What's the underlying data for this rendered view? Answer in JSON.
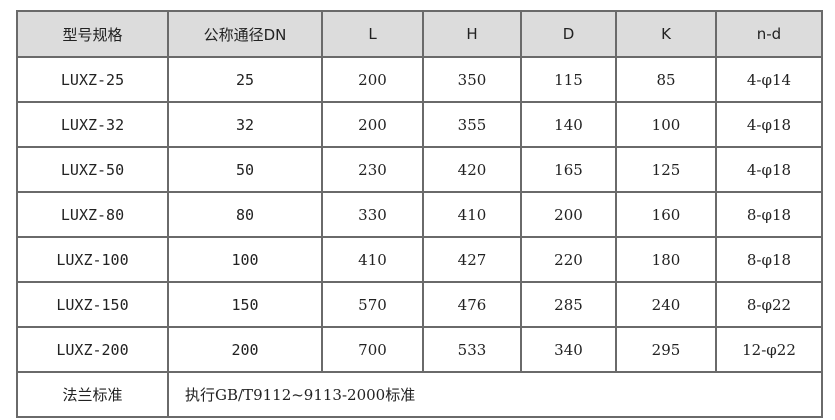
{
  "table": {
    "headers": [
      "型号规格",
      "公称通径DN",
      "L",
      "H",
      "D",
      "K",
      "n-d"
    ],
    "rows": [
      [
        "LUXZ-25",
        "25",
        "200",
        "350",
        "115",
        "85",
        "4-φ14"
      ],
      [
        "LUXZ-32",
        "32",
        "200",
        "355",
        "140",
        "100",
        "4-φ18"
      ],
      [
        "LUXZ-50",
        "50",
        "230",
        "420",
        "165",
        "125",
        "4-φ18"
      ],
      [
        "LUXZ-80",
        "80",
        "330",
        "410",
        "200",
        "160",
        "8-φ18"
      ],
      [
        "LUXZ-100",
        "100",
        "410",
        "427",
        "220",
        "180",
        "8-φ18"
      ],
      [
        "LUXZ-150",
        "150",
        "570",
        "476",
        "285",
        "240",
        "8-φ22"
      ],
      [
        "LUXZ-200",
        "200",
        "700",
        "533",
        "340",
        "295",
        "12-φ22"
      ]
    ],
    "footer": {
      "label": "法兰标准",
      "value": "执行GB/T9112~9113-2000标准"
    }
  }
}
